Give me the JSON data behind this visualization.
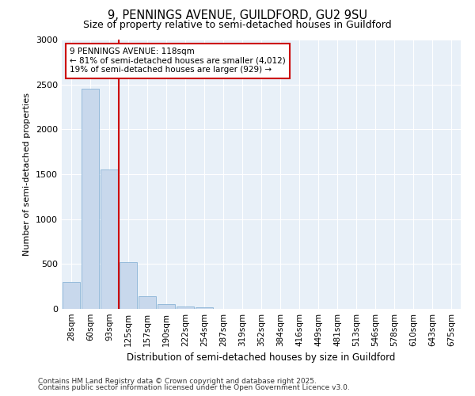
{
  "title": "9, PENNINGS AVENUE, GUILDFORD, GU2 9SU",
  "subtitle": "Size of property relative to semi-detached houses in Guildford",
  "xlabel": "Distribution of semi-detached houses by size in Guildford",
  "ylabel": "Number of semi-detached properties",
  "categories": [
    "28sqm",
    "60sqm",
    "93sqm",
    "125sqm",
    "157sqm",
    "190sqm",
    "222sqm",
    "254sqm",
    "287sqm",
    "319sqm",
    "352sqm",
    "384sqm",
    "416sqm",
    "449sqm",
    "481sqm",
    "513sqm",
    "546sqm",
    "578sqm",
    "610sqm",
    "643sqm",
    "675sqm"
  ],
  "values": [
    300,
    2450,
    1550,
    520,
    140,
    55,
    30,
    20,
    0,
    0,
    0,
    0,
    0,
    0,
    0,
    0,
    0,
    0,
    0,
    0,
    0
  ],
  "bar_color": "#c8d8ec",
  "bar_edgecolor": "#7aaad0",
  "vline_x": 2.5,
  "vline_color": "#cc0000",
  "annotation_title": "9 PENNINGS AVENUE: 118sqm",
  "annotation_line1": "← 81% of semi-detached houses are smaller (4,012)",
  "annotation_line2": "19% of semi-detached houses are larger (929) →",
  "annotation_box_color": "#cc0000",
  "ylim": [
    0,
    3000
  ],
  "yticks": [
    0,
    500,
    1000,
    1500,
    2000,
    2500,
    3000
  ],
  "bg_color": "#ffffff",
  "plot_bg_color": "#e8f0f8",
  "footer_line1": "Contains HM Land Registry data © Crown copyright and database right 2025.",
  "footer_line2": "Contains public sector information licensed under the Open Government Licence v3.0."
}
